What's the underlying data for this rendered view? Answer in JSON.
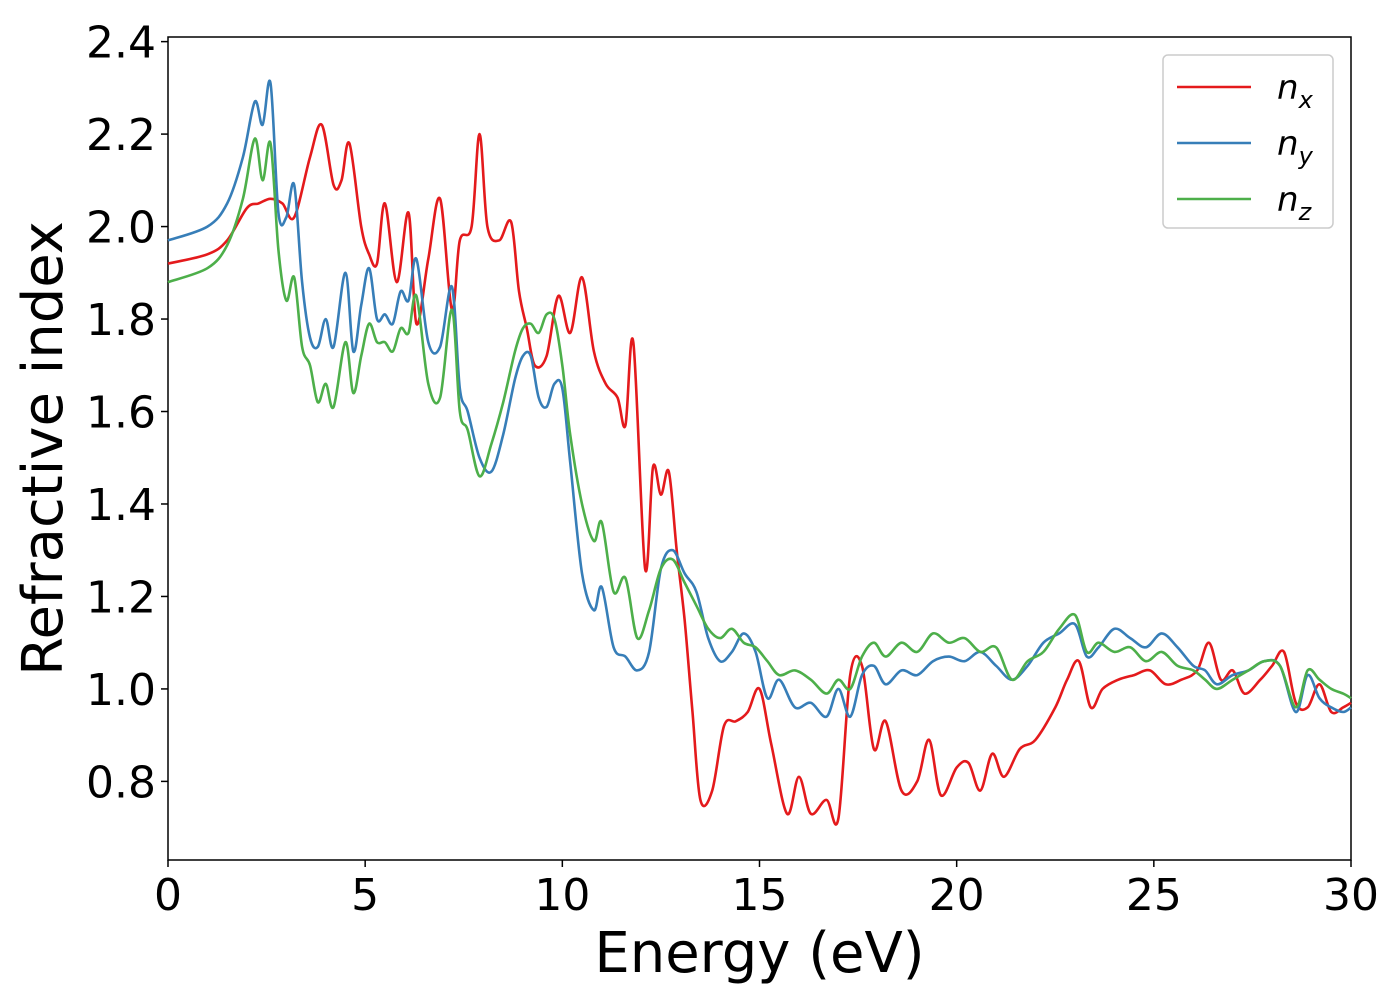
{
  "chart_data": {
    "type": "line",
    "xlabel": "Energy (eV)",
    "ylabel": "Refractive index",
    "xlim": [
      0,
      30
    ],
    "ylim": [
      0.63,
      2.41
    ],
    "xticks": [
      0,
      5,
      10,
      15,
      20,
      25,
      30
    ],
    "xtick_labels": [
      "0",
      "5",
      "10",
      "15",
      "20",
      "25",
      "30"
    ],
    "yticks": [
      0.8,
      1.0,
      1.2,
      1.4,
      1.6,
      1.8,
      2.0,
      2.2,
      2.4
    ],
    "ytick_labels": [
      "0.8",
      "1.0",
      "1.2",
      "1.4",
      "1.6",
      "1.8",
      "2.0",
      "2.2",
      "2.4"
    ],
    "grid": false,
    "legend_position": "top-right",
    "series": [
      {
        "name": "n",
        "subscript": "x",
        "color": "#e41a1c",
        "x": [
          0,
          1,
          1.5,
          2,
          2.3,
          2.6,
          2.9,
          3.2,
          3.6,
          3.9,
          4.2,
          4.4,
          4.6,
          4.9,
          5.1,
          5.3,
          5.5,
          5.8,
          6.1,
          6.3,
          6.6,
          6.9,
          7.2,
          7.4,
          7.7,
          7.9,
          8.1,
          8.4,
          8.7,
          8.9,
          9.1,
          9.3,
          9.6,
          9.9,
          10.2,
          10.5,
          10.8,
          11.1,
          11.4,
          11.6,
          11.8,
          12.1,
          12.3,
          12.5,
          12.7,
          12.9,
          13.1,
          13.3,
          13.5,
          13.8,
          14.1,
          14.4,
          14.7,
          15.0,
          15.3,
          15.7,
          16.0,
          16.3,
          16.7,
          17.0,
          17.3,
          17.6,
          17.9,
          18.2,
          18.6,
          19.0,
          19.3,
          19.6,
          20.0,
          20.3,
          20.6,
          20.9,
          21.2,
          21.6,
          22.0,
          22.5,
          22.8,
          23.1,
          23.4,
          23.7,
          24.1,
          24.5,
          24.9,
          25.3,
          25.7,
          26.1,
          26.4,
          26.7,
          27.0,
          27.3,
          27.7,
          28.0,
          28.3,
          28.6,
          28.9,
          29.2,
          29.5,
          29.8,
          30.0
        ],
        "y": [
          1.92,
          1.94,
          1.97,
          2.04,
          2.05,
          2.06,
          2.05,
          2.02,
          2.15,
          2.22,
          2.09,
          2.1,
          2.18,
          2.0,
          1.94,
          1.92,
          2.05,
          1.88,
          2.03,
          1.79,
          1.93,
          2.06,
          1.82,
          1.97,
          2.0,
          2.2,
          2.0,
          1.97,
          2.01,
          1.86,
          1.78,
          1.7,
          1.72,
          1.85,
          1.77,
          1.89,
          1.73,
          1.66,
          1.63,
          1.57,
          1.75,
          1.26,
          1.48,
          1.42,
          1.47,
          1.3,
          1.15,
          0.95,
          0.76,
          0.78,
          0.92,
          0.93,
          0.95,
          1.0,
          0.88,
          0.73,
          0.81,
          0.73,
          0.76,
          0.72,
          1.03,
          1.05,
          0.87,
          0.93,
          0.78,
          0.8,
          0.89,
          0.77,
          0.83,
          0.84,
          0.78,
          0.86,
          0.81,
          0.87,
          0.89,
          0.96,
          1.02,
          1.06,
          0.96,
          1.0,
          1.02,
          1.03,
          1.04,
          1.01,
          1.02,
          1.04,
          1.1,
          1.02,
          1.04,
          0.99,
          1.02,
          1.05,
          1.08,
          0.97,
          0.96,
          1.01,
          0.95,
          0.96,
          0.97
        ]
      },
      {
        "name": "n",
        "subscript": "y",
        "color": "#377eb8",
        "x": [
          0,
          1,
          1.5,
          1.9,
          2.2,
          2.4,
          2.6,
          2.8,
          3.0,
          3.2,
          3.4,
          3.6,
          3.8,
          4.0,
          4.2,
          4.5,
          4.7,
          4.9,
          5.1,
          5.3,
          5.5,
          5.7,
          5.9,
          6.1,
          6.3,
          6.6,
          6.9,
          7.2,
          7.4,
          7.6,
          7.9,
          8.2,
          8.5,
          8.8,
          9.0,
          9.2,
          9.4,
          9.6,
          9.8,
          10.0,
          10.2,
          10.5,
          10.8,
          11.0,
          11.3,
          11.6,
          11.9,
          12.2,
          12.5,
          12.8,
          13.1,
          13.4,
          13.7,
          14.0,
          14.3,
          14.6,
          14.9,
          15.2,
          15.5,
          15.9,
          16.3,
          16.7,
          17.0,
          17.3,
          17.6,
          17.9,
          18.2,
          18.6,
          19.0,
          19.4,
          19.8,
          20.2,
          20.6,
          21.0,
          21.4,
          21.8,
          22.2,
          22.6,
          23.0,
          23.3,
          23.6,
          24.0,
          24.4,
          24.8,
          25.2,
          25.6,
          26.0,
          26.3,
          26.6,
          27.0,
          27.4,
          27.8,
          28.2,
          28.6,
          28.9,
          29.2,
          29.5,
          29.8,
          30.0
        ],
        "y": [
          1.97,
          2.0,
          2.05,
          2.15,
          2.27,
          2.22,
          2.31,
          2.03,
          2.02,
          2.09,
          1.88,
          1.76,
          1.74,
          1.8,
          1.74,
          1.9,
          1.73,
          1.83,
          1.91,
          1.8,
          1.81,
          1.79,
          1.86,
          1.84,
          1.93,
          1.75,
          1.74,
          1.87,
          1.65,
          1.6,
          1.5,
          1.47,
          1.55,
          1.67,
          1.72,
          1.72,
          1.63,
          1.61,
          1.66,
          1.65,
          1.49,
          1.25,
          1.17,
          1.22,
          1.09,
          1.07,
          1.04,
          1.08,
          1.26,
          1.3,
          1.25,
          1.21,
          1.11,
          1.06,
          1.08,
          1.12,
          1.08,
          0.98,
          1.02,
          0.96,
          0.97,
          0.94,
          1.0,
          0.94,
          1.03,
          1.05,
          1.01,
          1.04,
          1.03,
          1.06,
          1.07,
          1.06,
          1.08,
          1.05,
          1.02,
          1.05,
          1.1,
          1.12,
          1.14,
          1.07,
          1.09,
          1.13,
          1.11,
          1.09,
          1.12,
          1.09,
          1.05,
          1.04,
          1.01,
          1.03,
          1.04,
          1.06,
          1.05,
          0.95,
          1.03,
          0.98,
          0.96,
          0.95,
          0.96
        ]
      },
      {
        "name": "n",
        "subscript": "z",
        "color": "#4daf4a",
        "x": [
          0,
          1,
          1.5,
          1.9,
          2.2,
          2.4,
          2.6,
          2.8,
          3.0,
          3.2,
          3.4,
          3.6,
          3.8,
          4.0,
          4.2,
          4.5,
          4.7,
          4.9,
          5.1,
          5.3,
          5.5,
          5.7,
          5.9,
          6.1,
          6.3,
          6.6,
          6.9,
          7.2,
          7.4,
          7.6,
          7.9,
          8.2,
          8.5,
          8.8,
          9.0,
          9.2,
          9.4,
          9.6,
          9.8,
          10.0,
          10.2,
          10.5,
          10.8,
          11.0,
          11.3,
          11.6,
          11.9,
          12.2,
          12.5,
          12.8,
          13.1,
          13.4,
          13.7,
          14.0,
          14.3,
          14.6,
          14.9,
          15.2,
          15.5,
          15.9,
          16.3,
          16.7,
          17.0,
          17.3,
          17.6,
          17.9,
          18.2,
          18.6,
          19.0,
          19.4,
          19.8,
          20.2,
          20.6,
          21.0,
          21.4,
          21.8,
          22.2,
          22.6,
          23.0,
          23.3,
          23.6,
          24.0,
          24.4,
          24.8,
          25.2,
          25.6,
          26.0,
          26.3,
          26.6,
          27.0,
          27.4,
          27.8,
          28.2,
          28.6,
          28.9,
          29.2,
          29.5,
          29.8,
          30.0
        ],
        "y": [
          1.88,
          1.91,
          1.96,
          2.06,
          2.19,
          2.1,
          2.18,
          1.95,
          1.84,
          1.89,
          1.74,
          1.7,
          1.62,
          1.66,
          1.61,
          1.75,
          1.64,
          1.72,
          1.79,
          1.75,
          1.75,
          1.73,
          1.78,
          1.77,
          1.85,
          1.66,
          1.63,
          1.82,
          1.6,
          1.56,
          1.46,
          1.53,
          1.62,
          1.73,
          1.78,
          1.79,
          1.77,
          1.81,
          1.8,
          1.7,
          1.55,
          1.4,
          1.32,
          1.36,
          1.21,
          1.24,
          1.11,
          1.17,
          1.26,
          1.28,
          1.23,
          1.18,
          1.13,
          1.11,
          1.13,
          1.1,
          1.09,
          1.06,
          1.03,
          1.04,
          1.02,
          0.99,
          1.02,
          1.0,
          1.07,
          1.1,
          1.07,
          1.1,
          1.08,
          1.12,
          1.1,
          1.11,
          1.08,
          1.09,
          1.02,
          1.06,
          1.08,
          1.13,
          1.16,
          1.08,
          1.1,
          1.08,
          1.09,
          1.06,
          1.08,
          1.05,
          1.04,
          1.02,
          1.0,
          1.02,
          1.04,
          1.06,
          1.05,
          0.96,
          1.04,
          1.02,
          1.0,
          0.99,
          0.98
        ]
      }
    ]
  }
}
